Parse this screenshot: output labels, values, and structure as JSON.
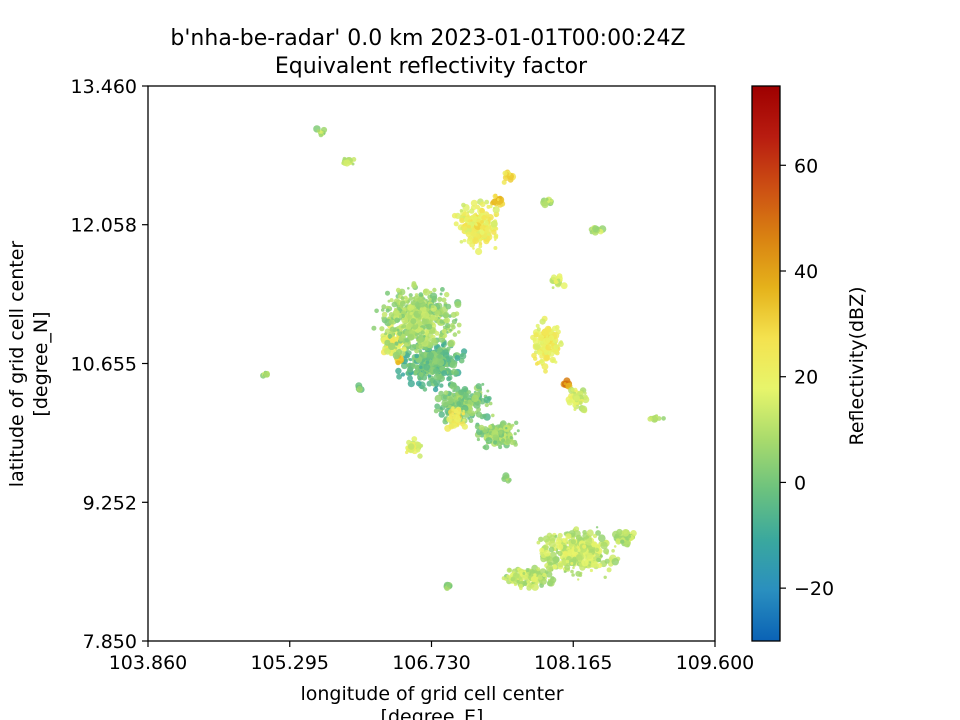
{
  "chart_data": {
    "type": "heatmap",
    "title": "b'nha-be-radar' 0.0 km 2023-01-01T00:00:24Z",
    "subtitle": "Equivalent reflectivity factor",
    "xlabel": "longitude of grid cell center",
    "xlabel_units": "[degree_E]",
    "ylabel": "latitude of grid cell center",
    "ylabel_units": "[degree_N]",
    "xlim": [
      103.86,
      109.6
    ],
    "ylim": [
      7.85,
      13.46
    ],
    "xticks": [
      103.86,
      105.295,
      106.73,
      108.165,
      109.6
    ],
    "xtick_labels": [
      "103.860",
      "105.295",
      "106.730",
      "108.165",
      "109.600"
    ],
    "yticks": [
      7.85,
      9.252,
      10.655,
      12.058,
      13.46
    ],
    "ytick_labels": [
      "7.850",
      "9.252",
      "10.655",
      "12.058",
      "13.460"
    ],
    "colorbar": {
      "label": "Reflectivity(dBZ)",
      "range": [
        -30,
        75
      ],
      "ticks": [
        -20,
        0,
        20,
        40,
        60
      ],
      "tick_labels": [
        "−20",
        "0",
        "20",
        "40",
        "60"
      ],
      "colors": [
        "#0a62b5",
        "#2a8fbf",
        "#3aa89e",
        "#6cc27e",
        "#a9db6c",
        "#e7f56b",
        "#f4e24f",
        "#e5b21b",
        "#d98212",
        "#cc4e13",
        "#b81c10",
        "#9e0000"
      ]
    },
    "radar_echo_cells": [
      {
        "lon": 106.73,
        "lat": 10.65,
        "dbz": 0,
        "spread_lon": 0.4,
        "spread_lat": 0.3
      },
      {
        "lon": 107.05,
        "lat": 10.25,
        "dbz": 5,
        "spread_lon": 0.35,
        "spread_lat": 0.25
      },
      {
        "lon": 107.4,
        "lat": 9.95,
        "dbz": 8,
        "spread_lon": 0.3,
        "spread_lat": 0.2
      },
      {
        "lon": 106.35,
        "lat": 10.85,
        "dbz": 22,
        "spread_lon": 0.15,
        "spread_lat": 0.25
      },
      {
        "lon": 106.4,
        "lat": 10.7,
        "dbz": 35,
        "spread_lon": 0.05,
        "spread_lat": 0.08
      },
      {
        "lon": 106.98,
        "lat": 10.1,
        "dbz": 28,
        "spread_lon": 0.12,
        "spread_lat": 0.15
      },
      {
        "lon": 107.2,
        "lat": 12.05,
        "dbz": 24,
        "spread_lon": 0.3,
        "spread_lat": 0.3
      },
      {
        "lon": 107.4,
        "lat": 12.3,
        "dbz": 32,
        "spread_lon": 0.08,
        "spread_lat": 0.1
      },
      {
        "lon": 107.5,
        "lat": 12.55,
        "dbz": 30,
        "spread_lon": 0.08,
        "spread_lat": 0.08
      },
      {
        "lon": 107.9,
        "lat": 10.85,
        "dbz": 25,
        "spread_lon": 0.2,
        "spread_lat": 0.3
      },
      {
        "lon": 108.1,
        "lat": 10.45,
        "dbz": 45,
        "spread_lon": 0.06,
        "spread_lat": 0.04
      },
      {
        "lon": 108.2,
        "lat": 10.3,
        "dbz": 18,
        "spread_lon": 0.15,
        "spread_lat": 0.15
      },
      {
        "lon": 108.2,
        "lat": 8.75,
        "dbz": 15,
        "spread_lon": 0.5,
        "spread_lat": 0.3
      },
      {
        "lon": 107.7,
        "lat": 8.5,
        "dbz": 14,
        "spread_lon": 0.35,
        "spread_lat": 0.15
      },
      {
        "lon": 106.6,
        "lat": 11.1,
        "dbz": 10,
        "spread_lon": 0.5,
        "spread_lat": 0.4
      },
      {
        "lon": 108.7,
        "lat": 8.9,
        "dbz": 12,
        "spread_lon": 0.15,
        "spread_lat": 0.12
      },
      {
        "lon": 105.05,
        "lat": 10.55,
        "dbz": 12,
        "spread_lon": 0.04,
        "spread_lat": 0.03
      },
      {
        "lon": 109.0,
        "lat": 10.1,
        "dbz": 14,
        "spread_lon": 0.1,
        "spread_lat": 0.03
      },
      {
        "lon": 108.0,
        "lat": 11.5,
        "dbz": 18,
        "spread_lon": 0.08,
        "spread_lat": 0.1
      },
      {
        "lon": 106.0,
        "lat": 10.4,
        "dbz": 5,
        "spread_lon": 0.05,
        "spread_lat": 0.05
      },
      {
        "lon": 108.4,
        "lat": 12.0,
        "dbz": 14,
        "spread_lon": 0.1,
        "spread_lat": 0.05
      },
      {
        "lon": 106.55,
        "lat": 9.8,
        "dbz": 20,
        "spread_lon": 0.12,
        "spread_lat": 0.12
      },
      {
        "lon": 107.5,
        "lat": 9.5,
        "dbz": 8,
        "spread_lon": 0.05,
        "spread_lat": 0.05
      },
      {
        "lon": 105.6,
        "lat": 13.0,
        "dbz": 12,
        "spread_lon": 0.06,
        "spread_lat": 0.06
      },
      {
        "lon": 105.9,
        "lat": 12.7,
        "dbz": 14,
        "spread_lon": 0.1,
        "spread_lat": 0.06
      },
      {
        "lon": 107.9,
        "lat": 12.3,
        "dbz": 12,
        "spread_lon": 0.1,
        "spread_lat": 0.05
      },
      {
        "lon": 106.9,
        "lat": 8.4,
        "dbz": 10,
        "spread_lon": 0.03,
        "spread_lat": 0.03
      }
    ]
  }
}
